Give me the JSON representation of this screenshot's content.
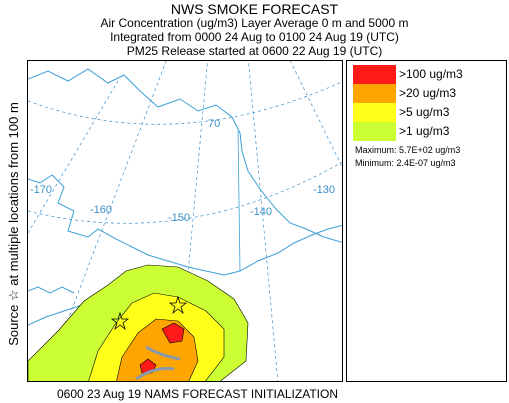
{
  "header": {
    "title": "NWS SMOKE FORECAST",
    "line2": "Air Concentration (ug/m3) Layer Average    0 m and  5000 m",
    "line3": "Integrated from 0000 24 Aug to 0100 24 Aug 19 (UTC)",
    "line4": "PM25 Release started at 0600 22 Aug 19 (UTC)"
  },
  "side_label": "Source ☆ at multiple locations from  100 m",
  "footer": "0600 23 Aug 19 NAMS FORECAST INITIALIZATION",
  "map": {
    "grid_labels": [
      "-170",
      "-160",
      "-150",
      "-140",
      "-130",
      "70"
    ],
    "colors": {
      "coast": "#3b9fd6",
      "grid": "#3b8fc8",
      "contour_outline": "#000000",
      "band_gt100": "#ff1a1a",
      "band_gt20": "#ffa500",
      "band_gt5": "#ffff1a",
      "band_gt1": "#ccff33",
      "overlay_gray": "#8899aa"
    },
    "source_marker": "star-icon"
  },
  "legend": {
    "items": [
      {
        "label": ">100 ug/m3",
        "color": "#ff1a1a"
      },
      {
        "label": ">20 ug/m3",
        "color": "#ffa500"
      },
      {
        "label": ">5 ug/m3",
        "color": "#ffff1a"
      },
      {
        "label": ">1 ug/m3",
        "color": "#ccff33"
      }
    ],
    "maximum": "Maximum: 5.7E+02 ug/m3",
    "minimum": "Minimum: 2.4E-07 ug/m3"
  }
}
